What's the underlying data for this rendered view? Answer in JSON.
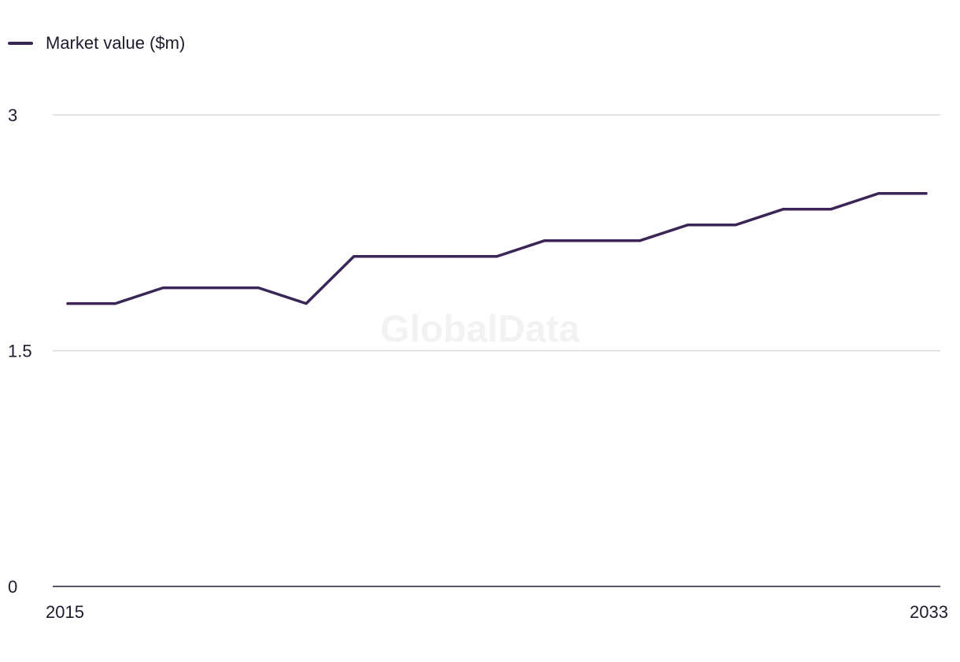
{
  "chart_data": {
    "type": "line",
    "title": "",
    "xlabel": "",
    "ylabel": "",
    "x": [
      2015,
      2016,
      2017,
      2018,
      2019,
      2020,
      2021,
      2022,
      2023,
      2024,
      2025,
      2026,
      2027,
      2028,
      2029,
      2030,
      2031,
      2032,
      2033
    ],
    "series": [
      {
        "name": "Market value ($m)",
        "values": [
          1.8,
          1.8,
          1.9,
          1.9,
          1.9,
          1.8,
          2.1,
          2.1,
          2.1,
          2.1,
          2.2,
          2.2,
          2.2,
          2.3,
          2.3,
          2.4,
          2.4,
          2.5,
          2.5
        ]
      }
    ],
    "ylim": [
      0,
      3
    ],
    "y_ticks": [
      "0",
      "1.5",
      "3"
    ],
    "x_ticks": [
      "2015",
      "2033"
    ],
    "grid": true,
    "legend_position": "top-left",
    "watermark": "GlobalData",
    "colors": {
      "line": "#3b2556",
      "grid": "#d9d9d9",
      "axis": "#1f1b2e",
      "text": "#1f1b2e",
      "watermark": "#f2f2f2"
    }
  }
}
